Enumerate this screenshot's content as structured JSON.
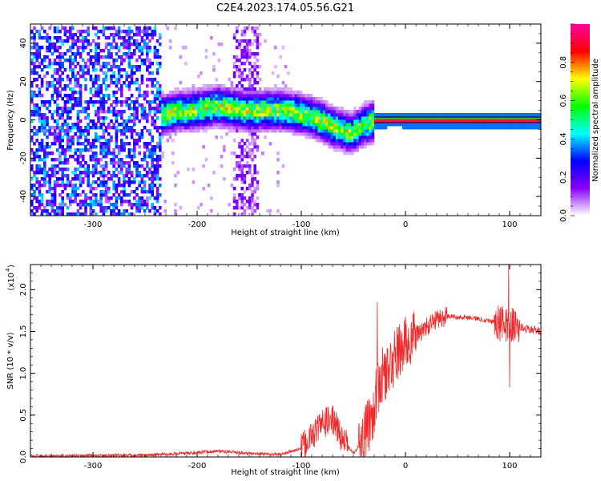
{
  "title": "C2E4.2023.174.05.56.G21",
  "chart_data": [
    {
      "type": "heatmap",
      "xlabel": "Height of straight line (km)",
      "ylabel": "Frequency (Hz)",
      "xlim": [
        -360,
        130
      ],
      "ylim": [
        -50,
        50
      ],
      "xticks": [
        -300,
        -200,
        -100,
        0,
        100
      ],
      "yticks": [
        -40,
        -20,
        0,
        20,
        40
      ],
      "colorbar": {
        "label": "Normalized spectral amplitude",
        "range": [
          0,
          1
        ],
        "ticks": [
          0.0,
          0.2,
          0.4,
          0.6,
          0.8
        ],
        "colormap": [
          "#ffffff",
          "#8b00ff",
          "#0000ff",
          "#00ffff",
          "#00ff00",
          "#ffff00",
          "#ff0000",
          "#ff00a0"
        ]
      },
      "ridge": {
        "x": [
          -235,
          -220,
          -200,
          -180,
          -160,
          -150,
          -130,
          -110,
          -100,
          -90,
          -80,
          -70,
          -60,
          -55,
          -50,
          -45,
          -40,
          -30,
          -20,
          -10,
          0,
          20,
          50,
          80,
          100,
          130
        ],
        "y": [
          3,
          5,
          6,
          8,
          6,
          5,
          6,
          5,
          4,
          2,
          0,
          -3,
          -5,
          -6,
          -6,
          -4,
          -2,
          0,
          0,
          1,
          0,
          0,
          0,
          0,
          0,
          0
        ]
      },
      "noise_regions": [
        {
          "x": [
            -360,
            -235
          ],
          "level": 0.25
        },
        {
          "x": [
            -165,
            -140
          ],
          "level": 0.12
        }
      ]
    },
    {
      "type": "line",
      "xlabel": "Height of straight line (km)",
      "ylabel": "SNR (10 * v/v)",
      "scale_note": "(x10",
      "scale_exp": "4",
      "xlim": [
        -360,
        130
      ],
      "ylim": [
        0,
        2.3
      ],
      "xticks": [
        -300,
        -200,
        -100,
        0,
        100
      ],
      "yticks": [
        0.0,
        0.5,
        1.0,
        1.5,
        2.0
      ],
      "color": "#ee2a2a",
      "envelope": {
        "x": [
          -360,
          -300,
          -250,
          -200,
          -180,
          -150,
          -120,
          -100,
          -90,
          -80,
          -70,
          -60,
          -50,
          -40,
          -30,
          -25,
          -20,
          -15,
          -10,
          0,
          10,
          20,
          30,
          40,
          60,
          80,
          90,
          100,
          110,
          130
        ],
        "y": [
          0.01,
          0.015,
          0.02,
          0.05,
          0.07,
          0.04,
          0.03,
          0.1,
          0.25,
          0.4,
          0.45,
          0.2,
          0.05,
          0.2,
          0.6,
          0.9,
          1.0,
          1.05,
          1.2,
          1.35,
          1.45,
          1.55,
          1.65,
          1.68,
          1.67,
          1.63,
          1.6,
          1.58,
          1.55,
          1.5
        ]
      },
      "spikes": [
        {
          "x": -27,
          "y": 1.85
        },
        {
          "x": -17,
          "y": 1.3
        },
        {
          "x": 99,
          "y": 2.3
        },
        {
          "x": 100,
          "y": 0.83
        }
      ]
    }
  ]
}
